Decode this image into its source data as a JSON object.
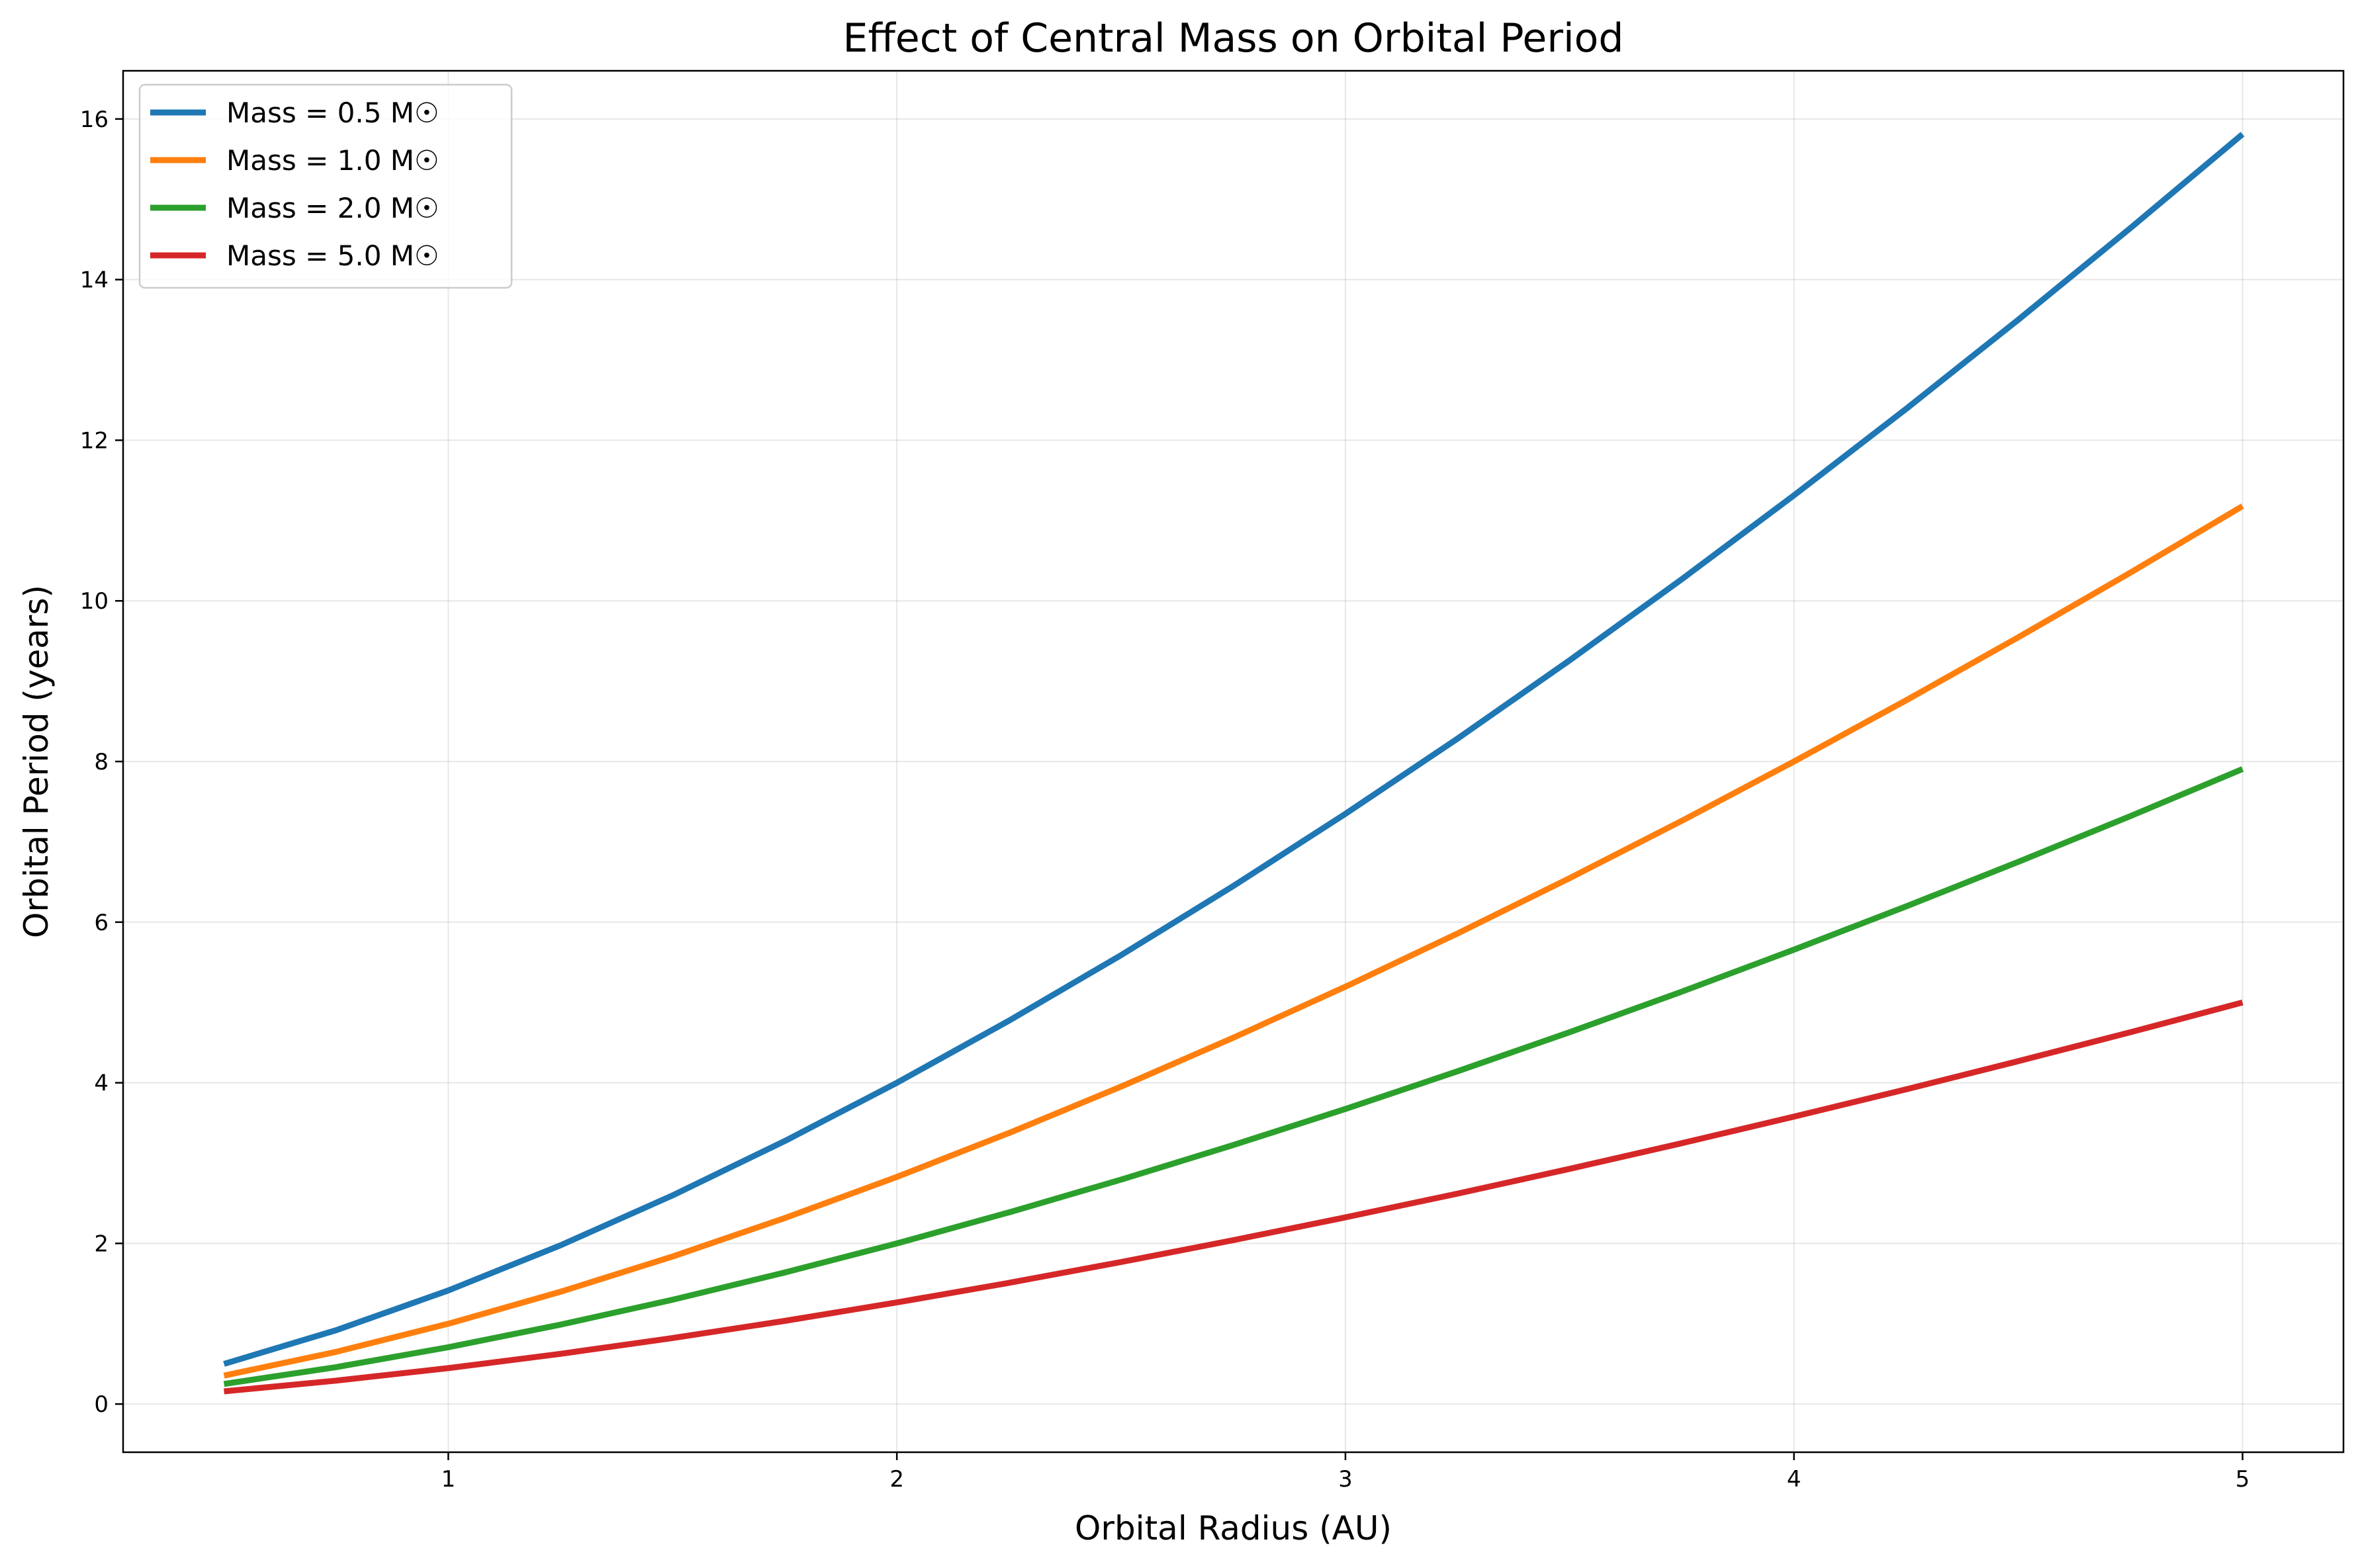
{
  "chart_data": {
    "type": "line",
    "title": "Effect of Central Mass on Orbital Period",
    "xlabel": "Orbital Radius (AU)",
    "ylabel": "Orbital Period (years)",
    "xlim": [
      0.275,
      5.225
    ],
    "ylim": [
      -0.6,
      16.6
    ],
    "xticks": [
      1,
      2,
      3,
      4,
      5
    ],
    "yticks": [
      0,
      2,
      4,
      6,
      8,
      10,
      12,
      14,
      16
    ],
    "grid": true,
    "legend_position": "upper-left",
    "x": [
      0.5,
      0.75,
      1.0,
      1.25,
      1.5,
      1.75,
      2.0,
      2.25,
      2.5,
      2.75,
      3.0,
      3.25,
      3.5,
      3.75,
      4.0,
      4.25,
      4.5,
      4.75,
      5.0
    ],
    "series": [
      {
        "name": "Mass = 0.5 M☉",
        "color": "#1f77b4",
        "values": [
          0.5,
          0.919,
          1.414,
          1.976,
          2.598,
          3.274,
          4.0,
          4.773,
          5.59,
          6.45,
          7.348,
          8.285,
          9.26,
          10.27,
          11.314,
          12.391,
          13.5,
          14.642,
          15.811
        ]
      },
      {
        "name": "Mass = 1.0 M☉",
        "color": "#ff7f0e",
        "values": [
          0.354,
          0.65,
          1.0,
          1.398,
          1.837,
          2.315,
          2.828,
          3.375,
          3.953,
          4.561,
          5.196,
          5.859,
          6.548,
          7.262,
          8.0,
          8.762,
          9.546,
          10.352,
          11.18
        ]
      },
      {
        "name": "Mass = 2.0 M☉",
        "color": "#2ca02c",
        "values": [
          0.25,
          0.459,
          0.707,
          0.988,
          1.299,
          1.637,
          2.0,
          2.386,
          2.795,
          3.225,
          3.674,
          4.143,
          4.63,
          5.135,
          5.657,
          6.196,
          6.75,
          7.32,
          7.906
        ]
      },
      {
        "name": "Mass = 5.0 M☉",
        "color": "#d62728",
        "values": [
          0.158,
          0.291,
          0.447,
          0.625,
          0.822,
          1.035,
          1.265,
          1.509,
          1.768,
          2.04,
          2.324,
          2.62,
          2.928,
          3.248,
          3.578,
          3.918,
          4.269,
          4.629,
          5.0
        ]
      }
    ]
  }
}
